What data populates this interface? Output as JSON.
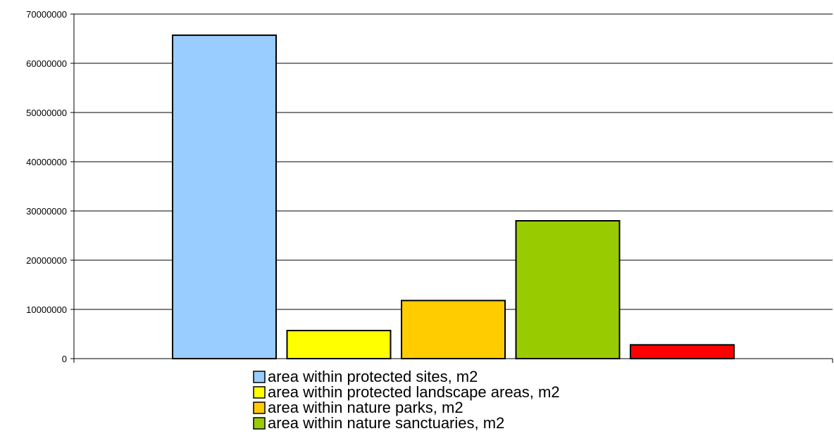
{
  "chart_data": {
    "type": "bar",
    "title": "",
    "xlabel": "",
    "ylabel": "",
    "ylim": [
      0,
      70000000
    ],
    "yticks": [
      "0",
      "10000000",
      "20000000",
      "30000000",
      "40000000",
      "50000000",
      "60000000",
      "70000000"
    ],
    "grid": true,
    "legend_position": "bottom",
    "series": [
      {
        "name": "area within protected sites, m2",
        "value": 65700000,
        "color": "#99ccff"
      },
      {
        "name": "area within protected landscape areas, m2",
        "value": 5700000,
        "color": "#ffff00"
      },
      {
        "name": "area within nature parks, m2",
        "value": 11800000,
        "color": "#ffcc00"
      },
      {
        "name": "area within nature sanctuaries, m2",
        "value": 28000000,
        "color": "#99cc00"
      },
      {
        "name": "",
        "value": 2800000,
        "color": "#ff0000"
      }
    ]
  }
}
